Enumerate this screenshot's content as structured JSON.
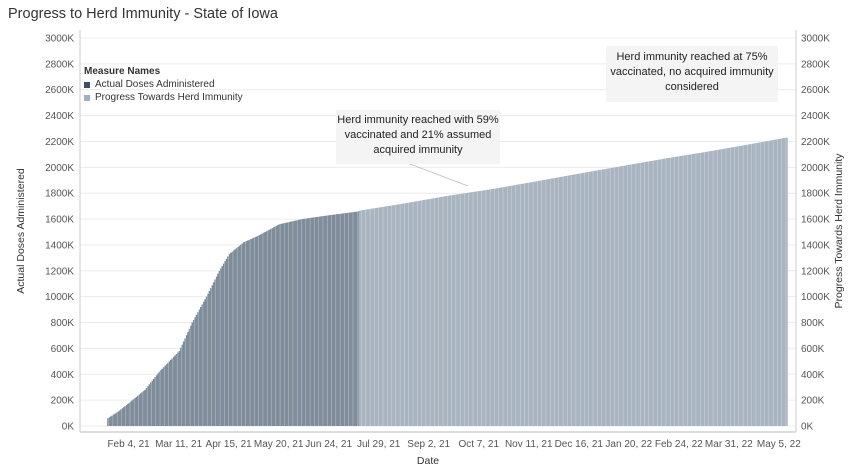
{
  "title": "Progress to Herd Immunity - State of Iowa",
  "legend": {
    "title": "Measure Names",
    "items": [
      {
        "label": "Actual Doses Administered",
        "color": "#7f8d9b"
      },
      {
        "label": "Progress Towards Herd Immunity",
        "color": "#a8b4bf"
      }
    ]
  },
  "annotations": [
    {
      "text": "Herd immunity reached at 75% vaccinated, no acquired immunity considered"
    },
    {
      "text": "Herd immunity reached with 59% vaccinated and 21% assumed acquired immunity"
    }
  ],
  "chart_data": {
    "type": "bar",
    "title": "Progress to Herd Immunity - State of Iowa",
    "xlabel": "Date",
    "ylabel": "Actual Doses Administered",
    "y2label": "Progress Towards Herd Immunity",
    "ylim": [
      0,
      3000000
    ],
    "y_ticks": [
      "0K",
      "200K",
      "400K",
      "600K",
      "800K",
      "1000K",
      "1200K",
      "1400K",
      "1600K",
      "1800K",
      "2000K",
      "2200K",
      "2400K",
      "2600K",
      "2800K",
      "3000K"
    ],
    "x_ticks": [
      "Feb 4, 21",
      "Mar 11, 21",
      "Apr 15, 21",
      "May 20, 21",
      "Jun 24, 21",
      "Jul 29, 21",
      "Sep 2, 21",
      "Oct 7, 21",
      "Nov 11, 21",
      "Dec 16, 21",
      "Jan 20, 22",
      "Feb 24, 22",
      "Mar 31, 22",
      "May 5, 22"
    ],
    "grid": true,
    "series": [
      {
        "name": "Actual Doses Administered",
        "color": "#7f8d9b",
        "points": [
          [
            "2021-01-20",
            60000
          ],
          [
            "2021-01-27",
            110000
          ],
          [
            "2021-02-04",
            180000
          ],
          [
            "2021-02-15",
            280000
          ],
          [
            "2021-02-25",
            420000
          ],
          [
            "2021-03-11",
            580000
          ],
          [
            "2021-03-20",
            800000
          ],
          [
            "2021-03-30",
            1000000
          ],
          [
            "2021-04-08",
            1200000
          ],
          [
            "2021-04-15",
            1330000
          ],
          [
            "2021-04-25",
            1420000
          ],
          [
            "2021-05-05",
            1470000
          ],
          [
            "2021-05-20",
            1560000
          ],
          [
            "2021-06-05",
            1600000
          ],
          [
            "2021-06-24",
            1630000
          ],
          [
            "2021-07-15",
            1660000
          ]
        ]
      },
      {
        "name": "Progress Towards Herd Immunity",
        "color": "#a8b4bf",
        "points": [
          [
            "2021-07-15",
            1665000
          ],
          [
            "2021-08-15",
            1720000
          ],
          [
            "2021-09-15",
            1780000
          ],
          [
            "2021-10-15",
            1830000
          ],
          [
            "2021-11-15",
            1890000
          ],
          [
            "2021-12-15",
            1950000
          ],
          [
            "2022-01-15",
            2010000
          ],
          [
            "2022-02-15",
            2070000
          ],
          [
            "2022-03-15",
            2120000
          ],
          [
            "2022-04-15",
            2180000
          ],
          [
            "2022-05-10",
            2230000
          ]
        ]
      }
    ]
  }
}
